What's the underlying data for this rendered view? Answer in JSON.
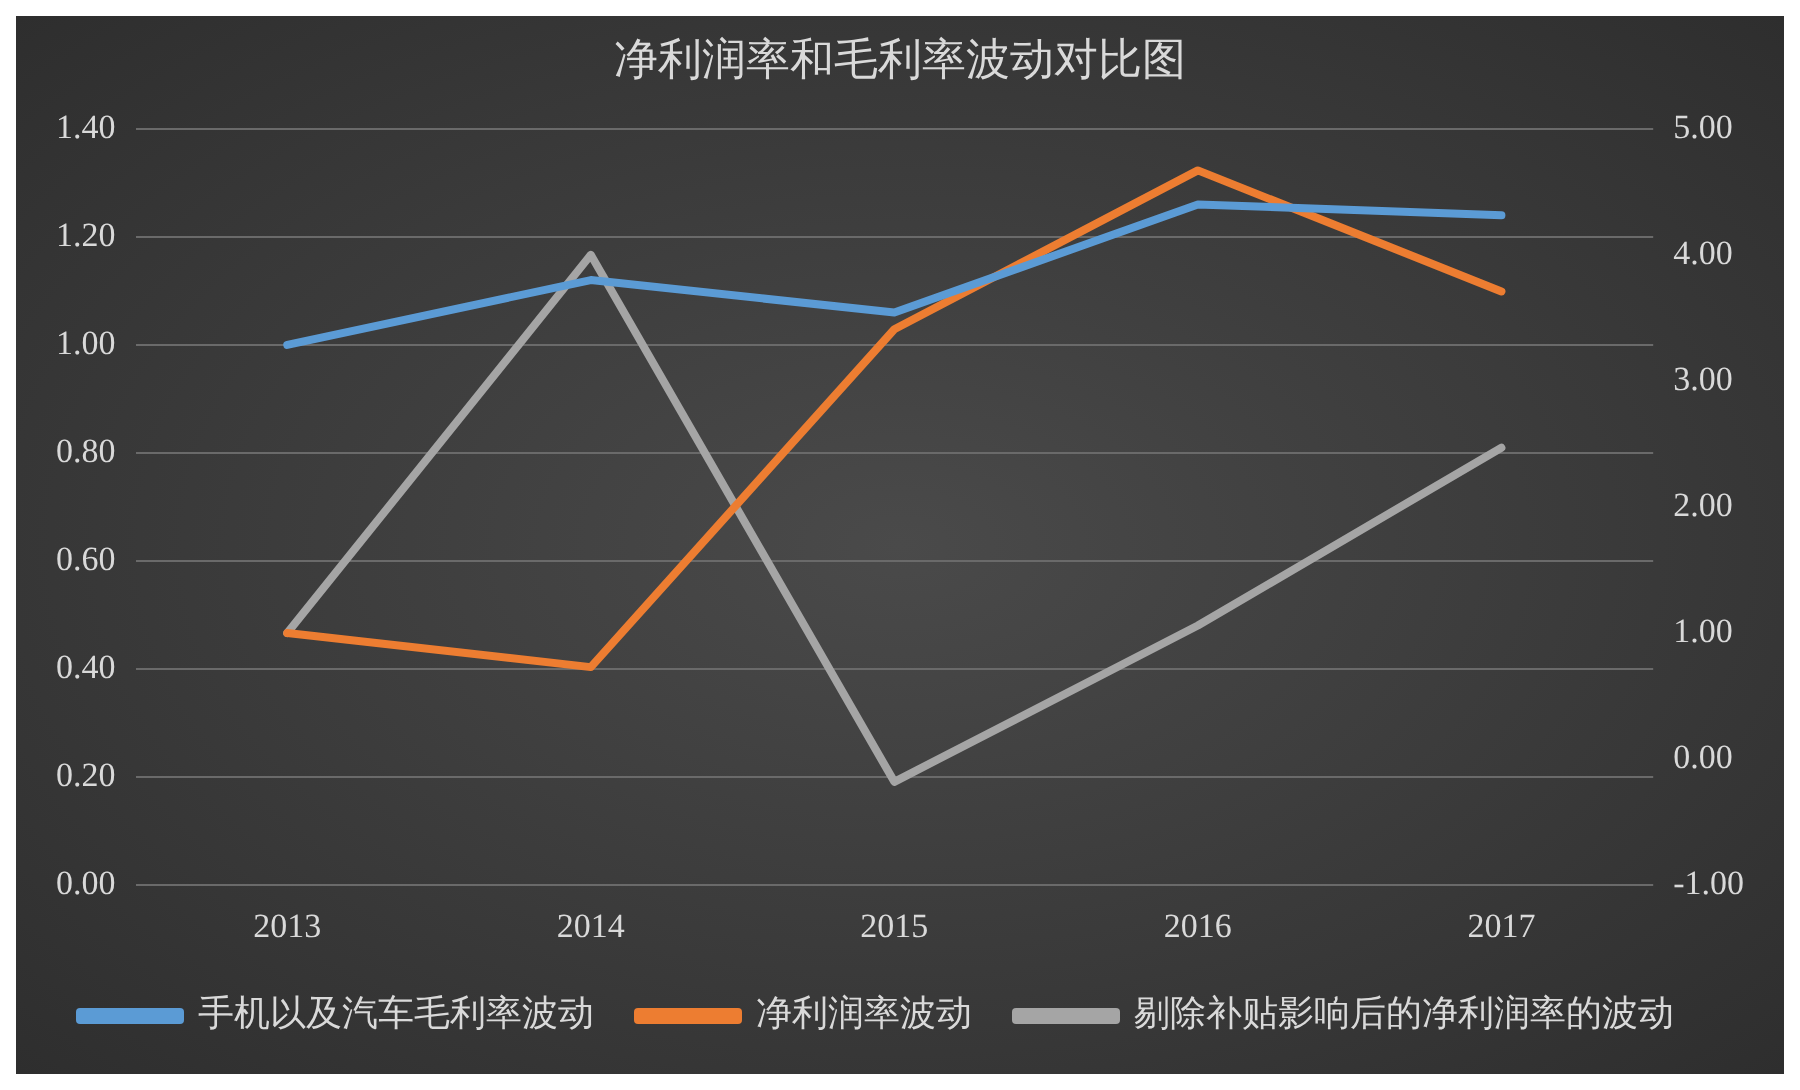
{
  "chart_data": {
    "type": "line",
    "title": "净利润率和毛利率波动对比图",
    "categories": [
      "2013",
      "2014",
      "2015",
      "2016",
      "2017"
    ],
    "series": [
      {
        "name": "手机以及汽车毛利率波动",
        "color": "#5b9bd5",
        "values": [
          1.0,
          1.12,
          1.06,
          1.26,
          1.24
        ]
      },
      {
        "name": "净利润率波动",
        "color": "#ed7d31",
        "values": [
          1.0,
          0.73,
          3.41,
          4.67,
          3.71
        ],
        "axis": "y2"
      },
      {
        "name": "剔除补贴影响后的净利润率的波动",
        "color": "#a5a5a5",
        "values": [
          1.0,
          4.0,
          -0.18,
          1.06,
          2.47
        ],
        "axis": "y2"
      }
    ],
    "ylim": [
      0,
      1.4
    ],
    "yticks": [
      {
        "value": 0,
        "label": "0.00"
      },
      {
        "value": 0.2,
        "label": "0.20"
      },
      {
        "value": 0.4,
        "label": "0.40"
      },
      {
        "value": 0.6,
        "label": "0.60"
      },
      {
        "value": 0.8,
        "label": "0.80"
      },
      {
        "value": 1.0,
        "label": "1.00"
      },
      {
        "value": 1.2,
        "label": "1.20"
      },
      {
        "value": 1.4,
        "label": "1.40"
      }
    ],
    "y2lim": [
      -1,
      5
    ],
    "y2ticks": [
      {
        "value": -1,
        "label": "-1.00"
      },
      {
        "value": 0,
        "label": "0.00"
      },
      {
        "value": 1,
        "label": "1.00"
      },
      {
        "value": 2,
        "label": "2.00"
      },
      {
        "value": 3,
        "label": "3.00"
      },
      {
        "value": 4,
        "label": "4.00"
      },
      {
        "value": 5,
        "label": "5.00"
      }
    ],
    "grid": "y",
    "legend": "bottom",
    "marker": "none",
    "line_style": "solid"
  }
}
